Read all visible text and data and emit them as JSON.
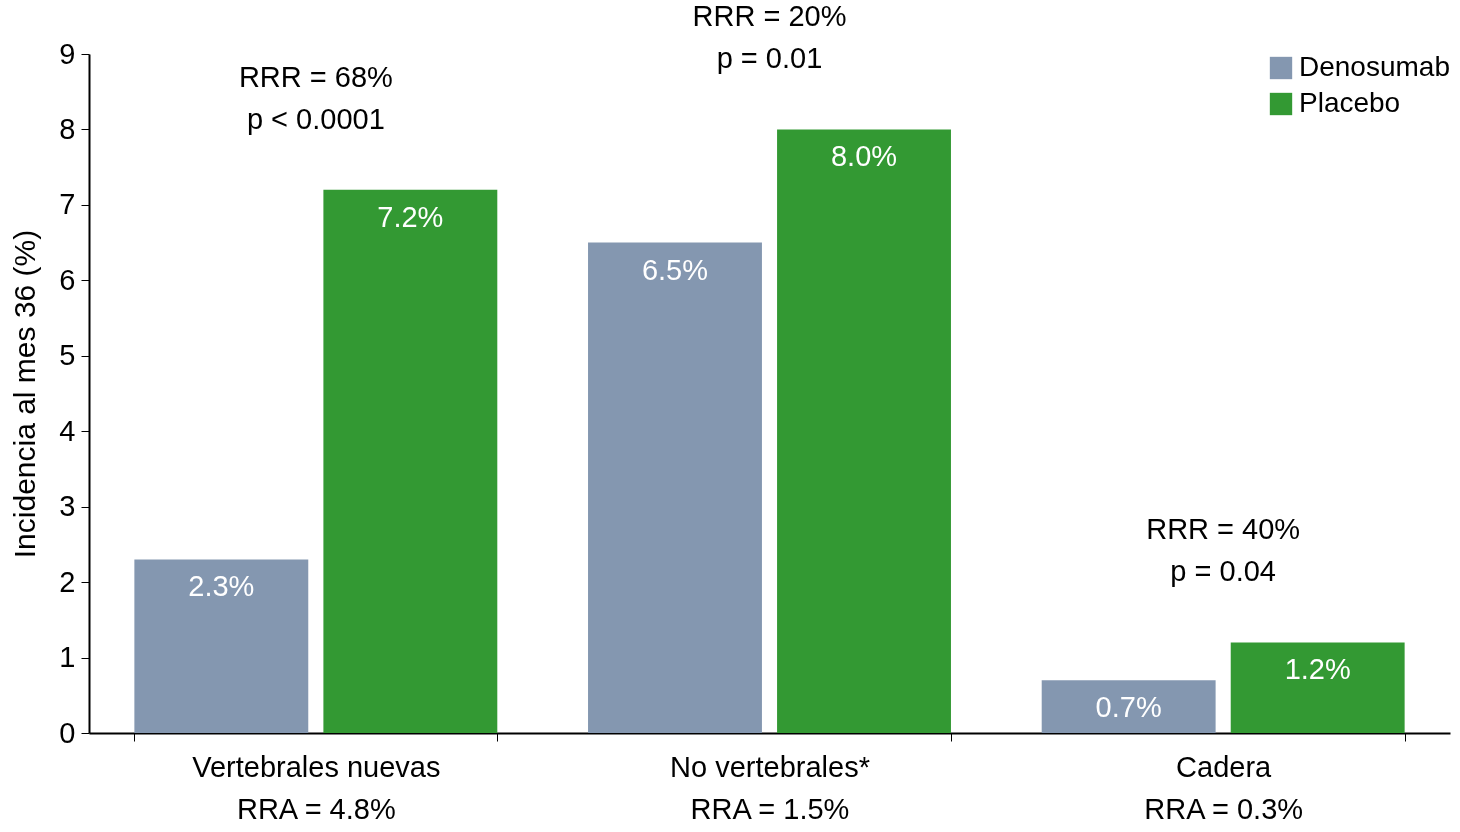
{
  "chart_data": {
    "type": "bar",
    "ylabel": "Incidencia al mes 36 (%)",
    "categories": [
      "Vertebrales nuevas",
      "No vertebrales*",
      "Cadera"
    ],
    "series": [
      {
        "name": "Denosumab",
        "color": "#8497b0",
        "values": [
          2.3,
          6.5,
          0.7
        ],
        "value_labels": [
          "2.3%",
          "6.5%",
          "0.7%"
        ]
      },
      {
        "name": "Placebo",
        "color": "#339933",
        "values": [
          7.2,
          8.0,
          1.2
        ],
        "value_labels": [
          "7.2%",
          "8.0%",
          "1.2%"
        ]
      }
    ],
    "ylim": [
      0,
      9
    ],
    "yticks": [
      0,
      1,
      2,
      3,
      4,
      5,
      6,
      7,
      8,
      9
    ],
    "grid": false,
    "legend": "top right",
    "annotations": [
      "RRR = 68%",
      "p < 0.0001",
      "RRR = 20%",
      "p = 0.01",
      "RRR = 40%",
      "p = 0.04",
      "RRA = 4.8%",
      "RRA = 1.5%",
      "RRA = 0.3%"
    ]
  }
}
